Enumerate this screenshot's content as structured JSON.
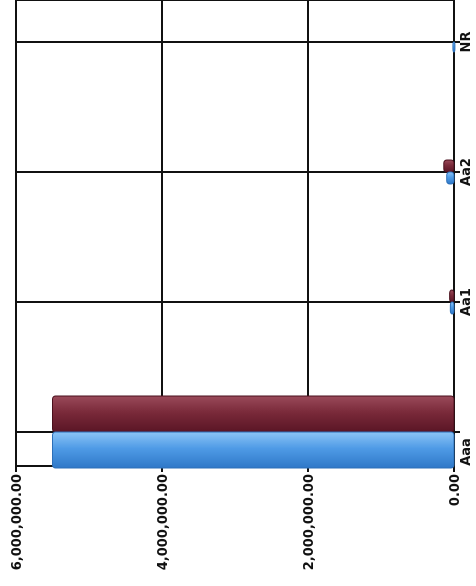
{
  "chart_data": {
    "type": "bar",
    "orientation": "rotated",
    "categories": [
      "Aaa",
      "Aa1",
      "Aa2",
      "NR"
    ],
    "series": [
      {
        "values": [
          5500000,
          60000,
          140000,
          0
        ]
      },
      {
        "values": [
          5500000,
          50000,
          100000,
          15000
        ]
      }
    ],
    "ylim": [
      0,
      6000000
    ],
    "tick_values": [
      0,
      2000000,
      4000000,
      6000000
    ],
    "tick_labels": [
      "0.00",
      "2,000,000.00",
      "4,000,000.00",
      "6,000,000.00"
    ],
    "grid": true,
    "colors": {
      "series0": "#7a2a3a",
      "series1": "#4f9be6",
      "gridline": "#111111",
      "frame": "#111111"
    }
  }
}
